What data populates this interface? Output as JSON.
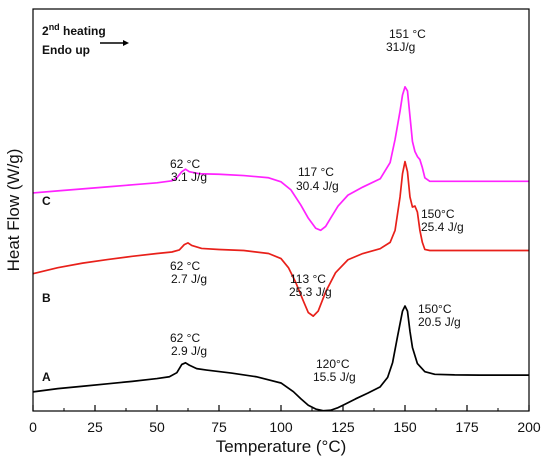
{
  "chart_data": {
    "type": "line",
    "title": "",
    "xlabel": "Temperature (°C)",
    "ylabel": "Heat Flow (W/g)",
    "xlim": [
      0,
      200
    ],
    "x_ticks": [
      "0",
      "25",
      "50",
      "75",
      "100",
      "125",
      "150",
      "175",
      "200"
    ],
    "y_ticks": [],
    "grid": false,
    "header": {
      "heating_prefix": "2",
      "heating_sup": "nd",
      "heating_suffix": " heating",
      "direction": "Endo up"
    },
    "colors": {
      "A": "#000000",
      "B": "#e8201a",
      "C": "#ff22ff",
      "frame": "#000000"
    },
    "series": [
      {
        "name": "A",
        "x": [
          0,
          10,
          20,
          30,
          40,
          50,
          55,
          58,
          60,
          61.5,
          63,
          66,
          70,
          80,
          90,
          100,
          105,
          108,
          111,
          114,
          117,
          120,
          123,
          126,
          130,
          135,
          140,
          143,
          145,
          147,
          149,
          150,
          151,
          152,
          153,
          155,
          158,
          162,
          170,
          180,
          190,
          200
        ],
        "y": [
          0.12,
          0.152,
          0.176,
          0.2,
          0.224,
          0.252,
          0.27,
          0.31,
          0.392,
          0.408,
          0.385,
          0.35,
          0.336,
          0.306,
          0.27,
          0.208,
          0.122,
          0.052,
          -0.012,
          -0.05,
          -0.066,
          -0.062,
          -0.036,
          0,
          0.05,
          0.108,
          0.17,
          0.264,
          0.41,
          0.67,
          0.92,
          0.97,
          0.92,
          0.72,
          0.56,
          0.4,
          0.32,
          0.294,
          0.288,
          0.286,
          0.286,
          0.286
        ]
      },
      {
        "name": "B",
        "x": [
          0,
          10,
          20,
          30,
          40,
          50,
          56,
          59,
          61,
          62.5,
          64,
          68,
          75,
          85,
          95,
          100,
          103,
          106,
          109,
          111,
          113,
          115,
          118,
          122,
          127,
          133,
          140,
          144,
          146,
          148,
          149,
          150,
          151,
          152,
          153,
          154,
          155,
          156,
          157,
          158,
          160,
          170,
          180,
          200
        ],
        "y": [
          1.29,
          1.35,
          1.395,
          1.43,
          1.462,
          1.49,
          1.505,
          1.525,
          1.578,
          1.595,
          1.57,
          1.54,
          1.53,
          1.52,
          1.49,
          1.44,
          1.35,
          1.2,
          1.02,
          0.905,
          0.87,
          0.92,
          1.11,
          1.3,
          1.428,
          1.49,
          1.538,
          1.6,
          1.72,
          2.05,
          2.28,
          2.4,
          2.3,
          2.05,
          1.95,
          1.96,
          1.9,
          1.72,
          1.6,
          1.53,
          1.52,
          1.52,
          1.52,
          1.52
        ]
      },
      {
        "name": "C",
        "x": [
          0,
          10,
          20,
          30,
          40,
          50,
          56,
          58,
          60,
          61.5,
          63,
          67,
          75,
          85,
          95,
          100,
          104,
          108,
          111,
          114,
          116,
          118,
          120,
          123,
          127,
          133,
          140,
          144,
          146,
          148,
          149,
          150,
          151,
          152,
          153,
          154,
          155,
          156,
          157,
          158,
          160,
          170,
          180,
          190,
          200
        ],
        "y": [
          2.09,
          2.11,
          2.13,
          2.15,
          2.17,
          2.19,
          2.21,
          2.24,
          2.3,
          2.325,
          2.3,
          2.28,
          2.275,
          2.262,
          2.24,
          2.2,
          2.12,
          1.97,
          1.84,
          1.74,
          1.72,
          1.758,
          1.84,
          1.96,
          2.068,
          2.148,
          2.23,
          2.39,
          2.62,
          2.9,
          3.06,
          3.14,
          3.1,
          2.85,
          2.6,
          2.5,
          2.45,
          2.42,
          2.34,
          2.24,
          2.205,
          2.205,
          2.205,
          2.205,
          2.205
        ]
      }
    ],
    "series_labels": [
      "A",
      "B",
      "C"
    ],
    "annotations": [
      {
        "series": "C",
        "temp": "62 °C",
        "value": "3.1 J/g"
      },
      {
        "series": "C",
        "temp": "117 °C",
        "value": "30.4 J/g"
      },
      {
        "series": "C",
        "temp": "151 °C",
        "value": "31J/g"
      },
      {
        "series": "B",
        "temp": "62 °C",
        "value": "2.7 J/g"
      },
      {
        "series": "B",
        "temp": "113 °C",
        "value": "25.3 J/g"
      },
      {
        "series": "B",
        "temp": "150°C",
        "value": "25.4 J/g"
      },
      {
        "series": "A",
        "temp": "62 °C",
        "value": "2.9 J/g"
      },
      {
        "series": "A",
        "temp": "120°C",
        "value": "15.5 J/g"
      },
      {
        "series": "A",
        "temp": "150°C",
        "value": "20.5 J/g"
      }
    ]
  }
}
